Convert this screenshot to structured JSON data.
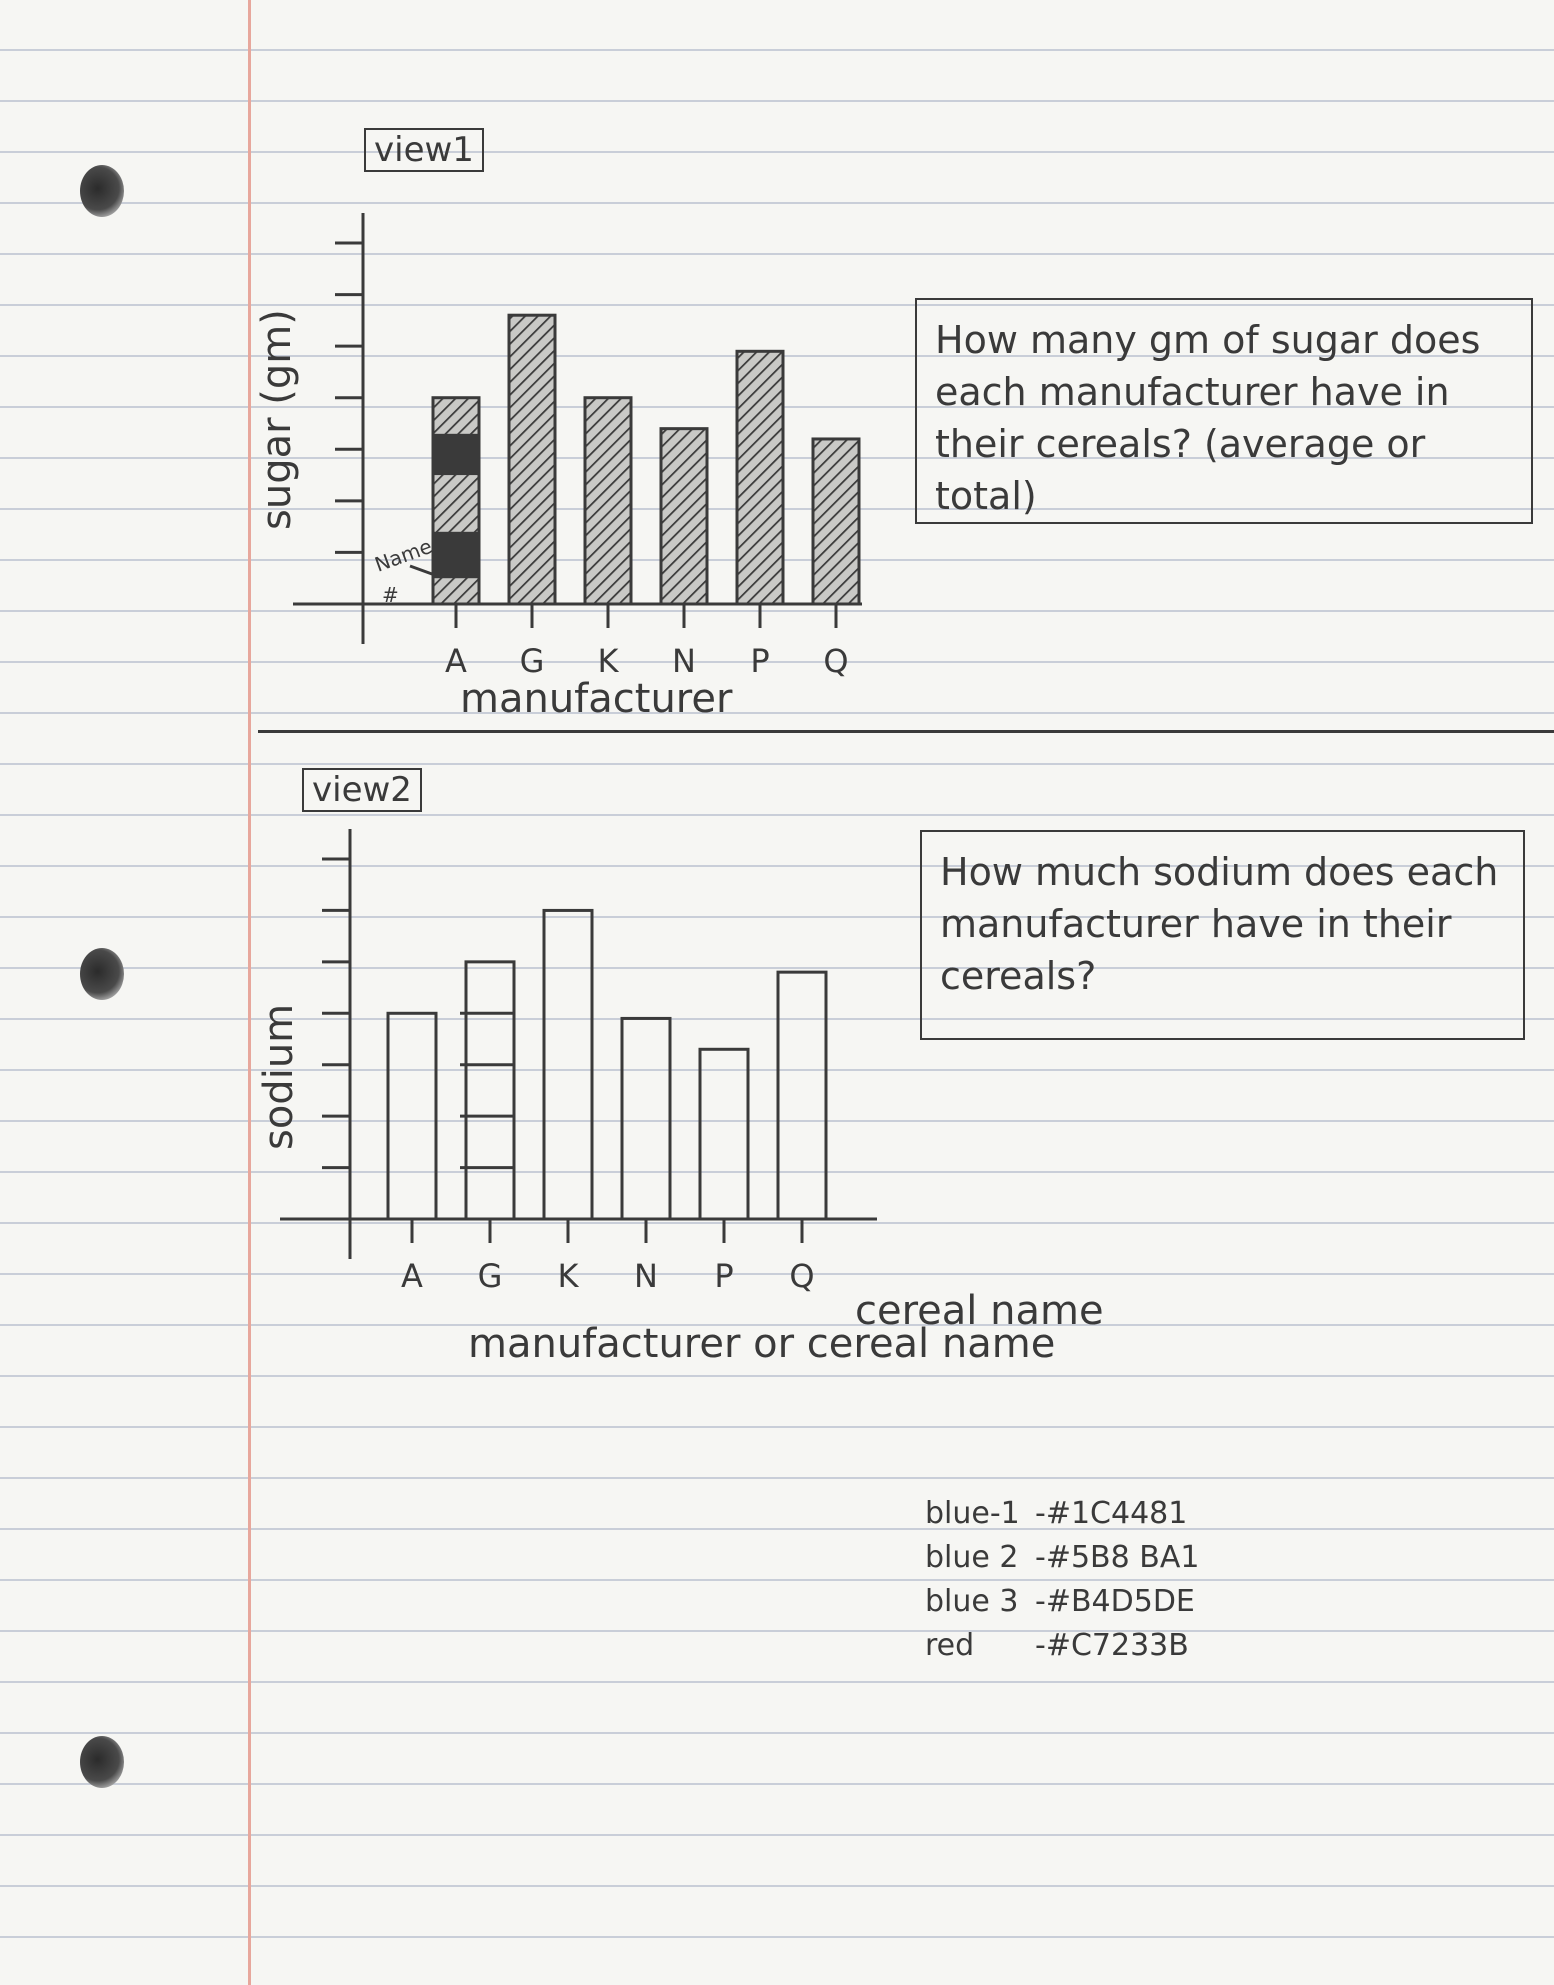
{
  "view1": {
    "label": "view1",
    "question": "How many gm of sugar does each manufacturer have in their cereals? (average or total)",
    "annotation_name": "Name",
    "annotation_hash": "#"
  },
  "view2": {
    "label": "view2",
    "question": "How much sodium does each manufacturer have in their cereals?",
    "xlabel_extra": "cereal name"
  },
  "colors": [
    {
      "name": "blue 1",
      "hex": "#1C4481"
    },
    {
      "name": "blue 2",
      "hex": "#5B8BA1"
    },
    {
      "name": "blue 3",
      "hex": "#B4D5DE"
    },
    {
      "name": "red",
      "hex": "#C7233B"
    }
  ],
  "color_labels": [
    {
      "name": "blue-1",
      "code": "#1C4481"
    },
    {
      "name": "blue 2",
      "code": "#5B8 BA1"
    },
    {
      "name": "blue 3",
      "code": "#B4D5DE"
    },
    {
      "name": "red",
      "code": "#C7233B"
    }
  ],
  "chart_data": [
    {
      "type": "bar",
      "categories": [
        "A",
        "G",
        "K",
        "N",
        "P",
        "Q"
      ],
      "values": [
        4,
        5.6,
        4,
        3.4,
        4.9,
        3.2
      ],
      "title": "",
      "xlabel": "manufacturer",
      "ylabel": "sugar (gm)",
      "ylim": [
        0,
        7
      ],
      "grid": false,
      "fill": "hatched"
    },
    {
      "type": "bar",
      "categories": [
        "A",
        "G",
        "K",
        "N",
        "P",
        "Q"
      ],
      "values": [
        4,
        5,
        6,
        3.9,
        3.3,
        4.8
      ],
      "title": "",
      "xlabel": "manufacturer or cereal name",
      "ylabel": "sodium",
      "ylim": [
        0,
        7
      ],
      "grid": false,
      "fill": "outline"
    }
  ]
}
